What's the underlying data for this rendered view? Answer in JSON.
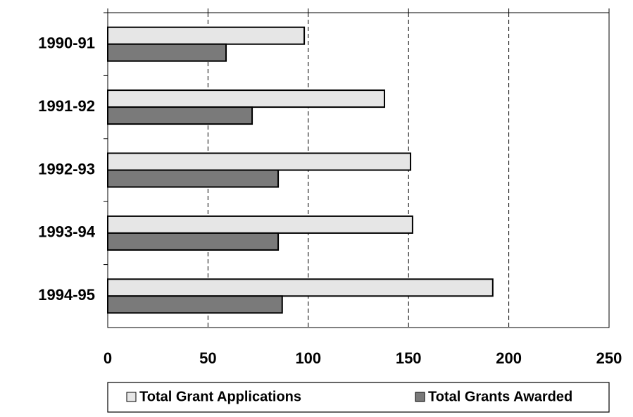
{
  "chart_data": {
    "type": "bar",
    "orientation": "horizontal",
    "categories": [
      "1990-91",
      "1991-92",
      "1992-93",
      "1993-94",
      "1994-95"
    ],
    "series": [
      {
        "name": "Total Grant Applications",
        "color": "#e6e6e6",
        "values": [
          98,
          138,
          151,
          152,
          192
        ]
      },
      {
        "name": "Total Grants Awarded",
        "color": "#7a7a7a",
        "values": [
          59,
          72,
          85,
          85,
          87
        ]
      }
    ],
    "xlim": [
      0,
      250
    ],
    "xticks": [
      0,
      50,
      100,
      150,
      200,
      250
    ],
    "grid": true,
    "legend": "bottom"
  }
}
